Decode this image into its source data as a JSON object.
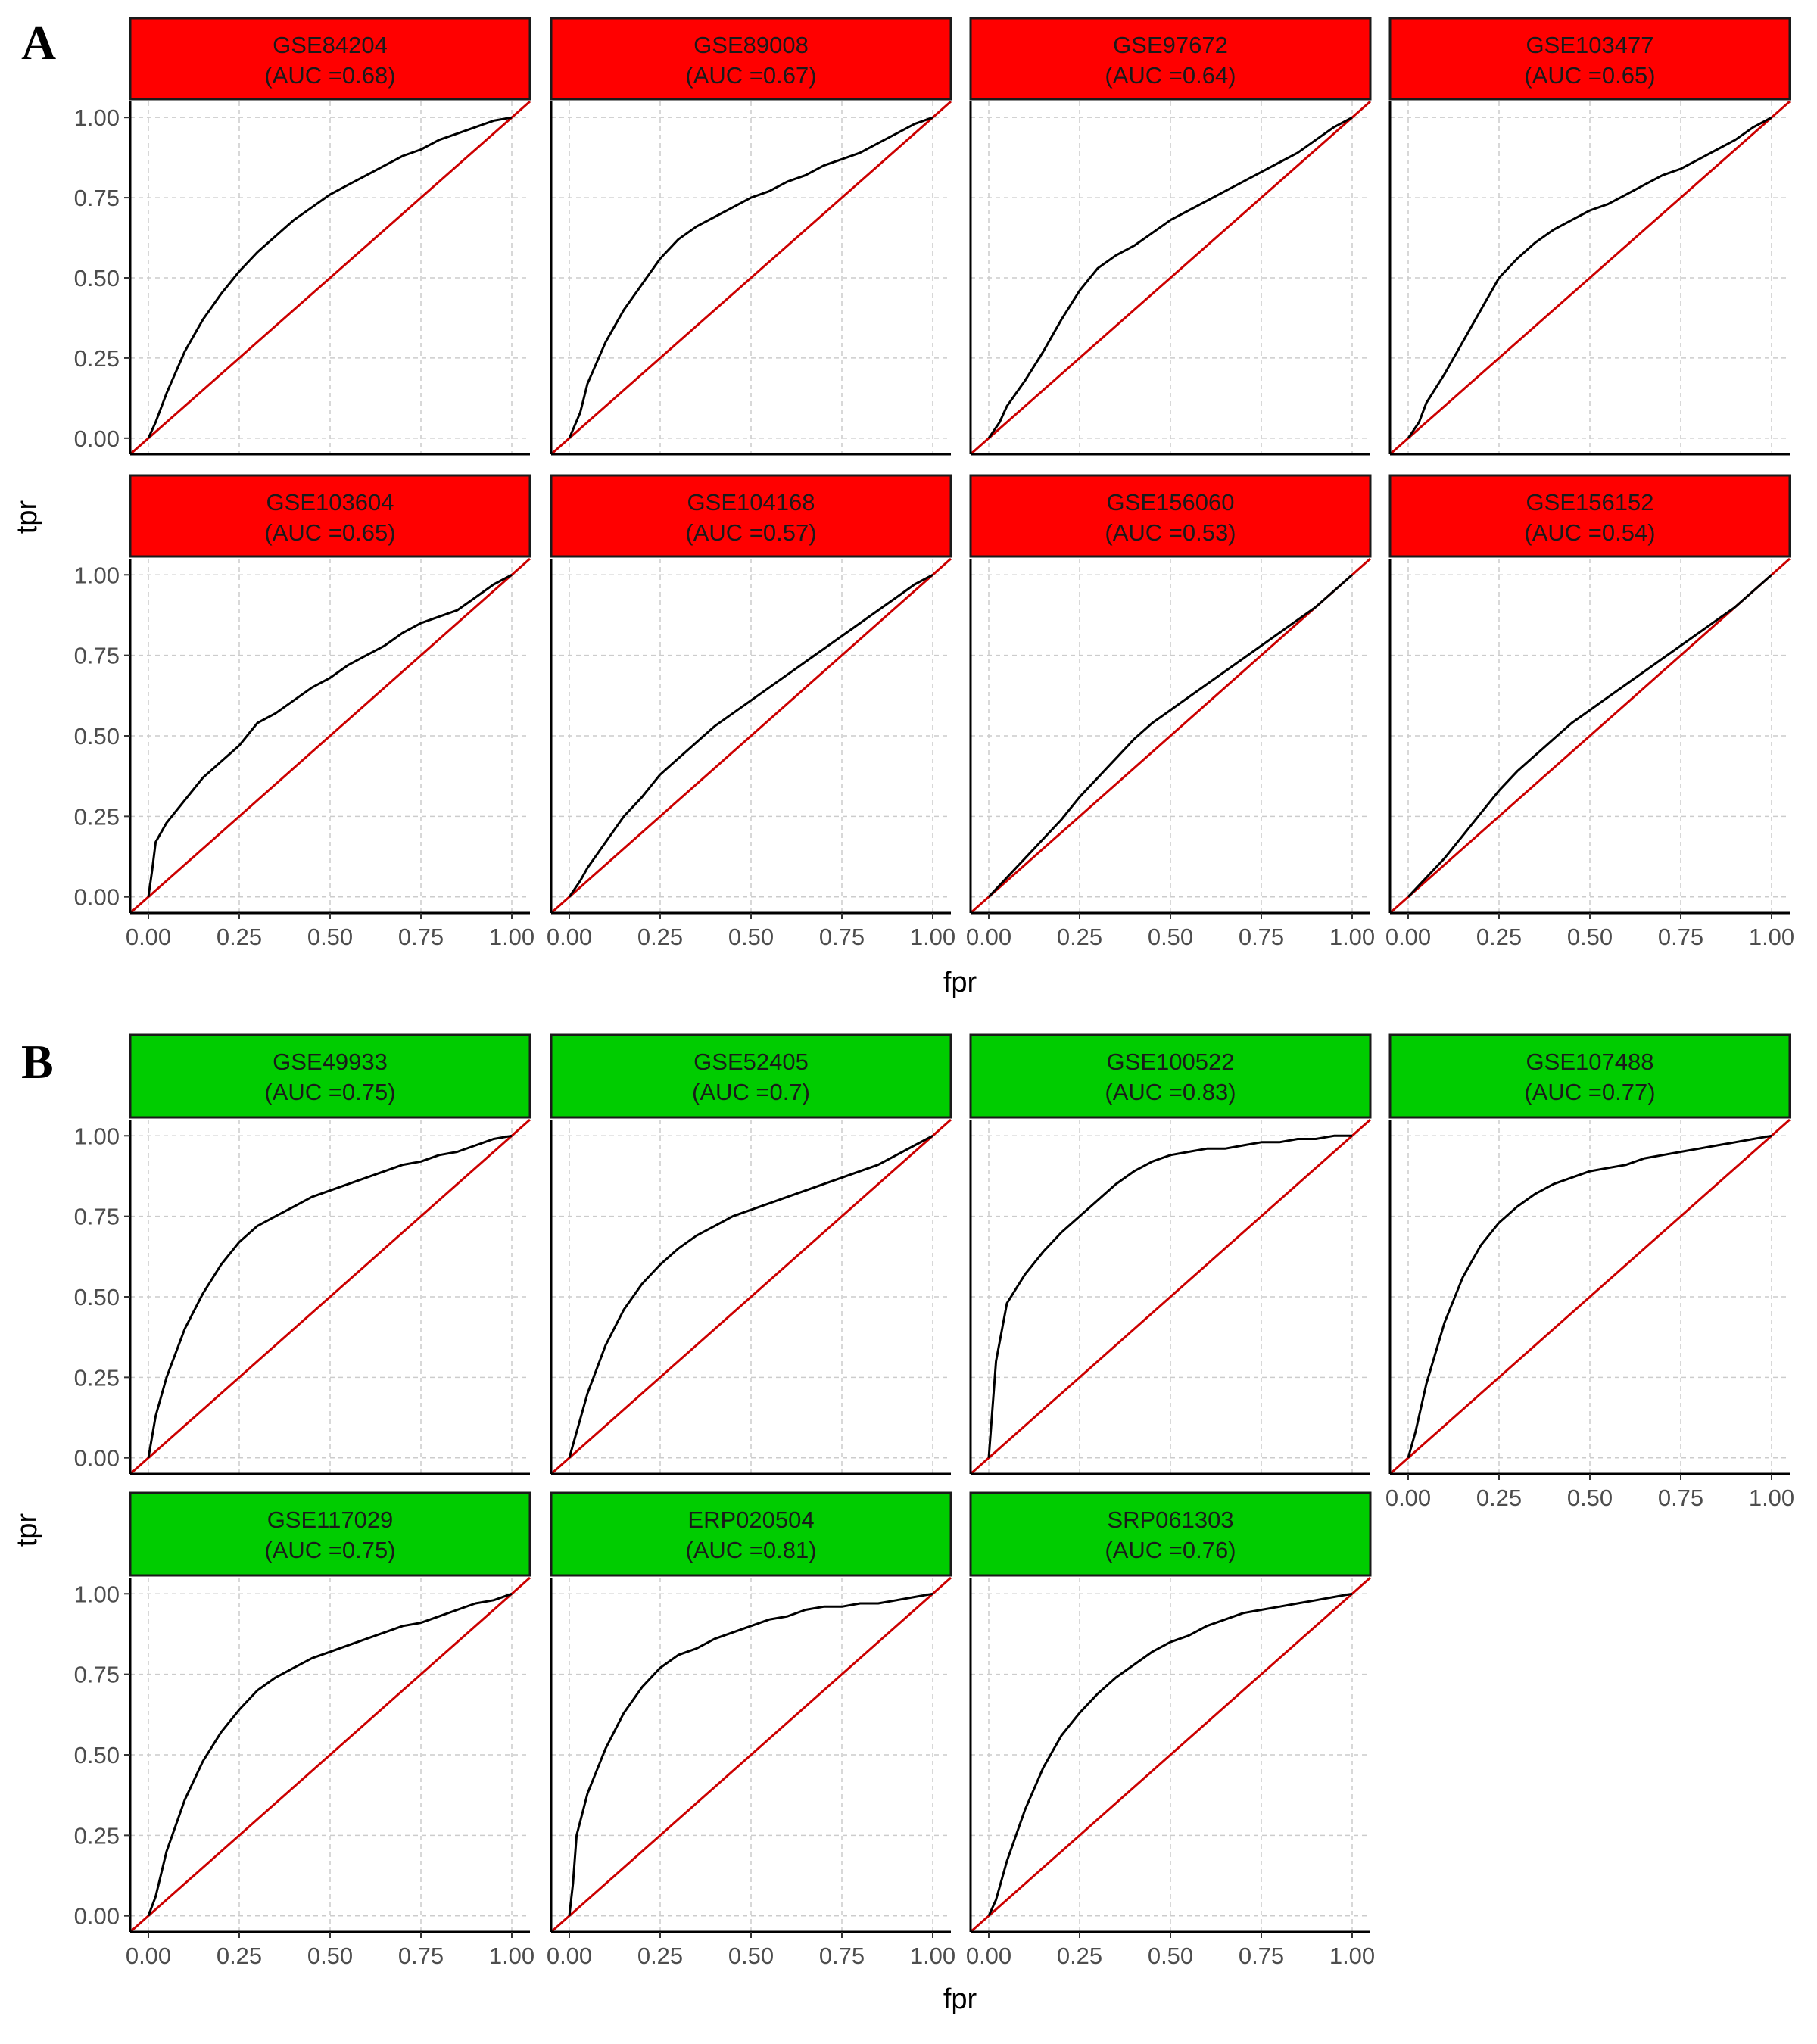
{
  "chart_data": [
    {
      "type": "line",
      "panel_label": "A",
      "xlabel": "fpr",
      "ylabel": "tpr",
      "xlim": [
        0,
        1
      ],
      "ylim": [
        0,
        1
      ],
      "x_ticks": [
        "0.00",
        "0.25",
        "0.50",
        "0.75",
        "1.00"
      ],
      "y_ticks": [
        "0.00",
        "0.25",
        "0.50",
        "0.75",
        "1.00"
      ],
      "grid": true,
      "strip_color": "#ff0000",
      "curve_color": "#000000",
      "diagonal_color": "#cc0000",
      "facets": [
        {
          "name": "GSE84204",
          "auc_label": "(AUC =0.68)",
          "fpr": [
            0,
            0.02,
            0.05,
            0.1,
            0.15,
            0.2,
            0.25,
            0.3,
            0.35,
            0.4,
            0.45,
            0.5,
            0.55,
            0.6,
            0.65,
            0.7,
            0.75,
            0.8,
            0.85,
            0.9,
            0.95,
            1
          ],
          "tpr": [
            0,
            0.05,
            0.14,
            0.27,
            0.37,
            0.45,
            0.52,
            0.58,
            0.63,
            0.68,
            0.72,
            0.76,
            0.79,
            0.82,
            0.85,
            0.88,
            0.9,
            0.93,
            0.95,
            0.97,
            0.99,
            1
          ]
        },
        {
          "name": "GSE89008",
          "auc_label": "(AUC =0.67)",
          "fpr": [
            0,
            0.03,
            0.05,
            0.1,
            0.15,
            0.2,
            0.25,
            0.3,
            0.35,
            0.4,
            0.45,
            0.5,
            0.55,
            0.6,
            0.65,
            0.7,
            0.75,
            0.8,
            0.85,
            0.9,
            0.95,
            1
          ],
          "tpr": [
            0,
            0.08,
            0.17,
            0.3,
            0.4,
            0.48,
            0.56,
            0.62,
            0.66,
            0.69,
            0.72,
            0.75,
            0.77,
            0.8,
            0.82,
            0.85,
            0.87,
            0.89,
            0.92,
            0.95,
            0.98,
            1
          ]
        },
        {
          "name": "GSE97672",
          "auc_label": "(AUC =0.64)",
          "fpr": [
            0,
            0.03,
            0.05,
            0.1,
            0.15,
            0.2,
            0.25,
            0.3,
            0.35,
            0.4,
            0.45,
            0.5,
            0.55,
            0.6,
            0.65,
            0.7,
            0.75,
            0.8,
            0.85,
            0.9,
            0.95,
            1
          ],
          "tpr": [
            0,
            0.05,
            0.1,
            0.18,
            0.27,
            0.37,
            0.46,
            0.53,
            0.57,
            0.6,
            0.64,
            0.68,
            0.71,
            0.74,
            0.77,
            0.8,
            0.83,
            0.86,
            0.89,
            0.93,
            0.97,
            1
          ]
        },
        {
          "name": "GSE103477",
          "auc_label": "(AUC =0.65)",
          "fpr": [
            0,
            0.03,
            0.05,
            0.1,
            0.15,
            0.2,
            0.25,
            0.3,
            0.35,
            0.4,
            0.45,
            0.5,
            0.55,
            0.6,
            0.65,
            0.7,
            0.75,
            0.8,
            0.85,
            0.9,
            0.95,
            1
          ],
          "tpr": [
            0,
            0.05,
            0.11,
            0.2,
            0.3,
            0.4,
            0.5,
            0.56,
            0.61,
            0.65,
            0.68,
            0.71,
            0.73,
            0.76,
            0.79,
            0.82,
            0.84,
            0.87,
            0.9,
            0.93,
            0.97,
            1
          ]
        },
        {
          "name": "GSE103604",
          "auc_label": "(AUC =0.65)",
          "fpr": [
            0,
            0.01,
            0.02,
            0.05,
            0.1,
            0.15,
            0.2,
            0.25,
            0.3,
            0.35,
            0.4,
            0.45,
            0.5,
            0.55,
            0.6,
            0.65,
            0.7,
            0.75,
            0.8,
            0.85,
            0.9,
            0.95,
            1
          ],
          "tpr": [
            0,
            0.08,
            0.17,
            0.23,
            0.3,
            0.37,
            0.42,
            0.47,
            0.54,
            0.57,
            0.61,
            0.65,
            0.68,
            0.72,
            0.75,
            0.78,
            0.82,
            0.85,
            0.87,
            0.89,
            0.93,
            0.97,
            1
          ]
        },
        {
          "name": "GSE104168",
          "auc_label": "(AUC =0.57)",
          "fpr": [
            0,
            0.03,
            0.05,
            0.1,
            0.15,
            0.2,
            0.25,
            0.3,
            0.35,
            0.4,
            0.45,
            0.5,
            0.55,
            0.6,
            0.65,
            0.7,
            0.75,
            0.8,
            0.85,
            0.9,
            0.95,
            1
          ],
          "tpr": [
            0,
            0.05,
            0.09,
            0.17,
            0.25,
            0.31,
            0.38,
            0.43,
            0.48,
            0.53,
            0.57,
            0.61,
            0.65,
            0.69,
            0.73,
            0.77,
            0.81,
            0.85,
            0.89,
            0.93,
            0.97,
            1
          ]
        },
        {
          "name": "GSE156060",
          "auc_label": "(AUC =0.53)",
          "fpr": [
            0,
            0.05,
            0.1,
            0.15,
            0.2,
            0.25,
            0.3,
            0.35,
            0.4,
            0.45,
            0.5,
            0.55,
            0.6,
            0.65,
            0.7,
            0.75,
            0.8,
            0.85,
            0.9,
            0.95,
            1
          ],
          "tpr": [
            0,
            0.06,
            0.12,
            0.18,
            0.24,
            0.31,
            0.37,
            0.43,
            0.49,
            0.54,
            0.58,
            0.62,
            0.66,
            0.7,
            0.74,
            0.78,
            0.82,
            0.86,
            0.9,
            0.95,
            1
          ]
        },
        {
          "name": "GSE156152",
          "auc_label": "(AUC =0.54)",
          "fpr": [
            0,
            0.05,
            0.1,
            0.15,
            0.2,
            0.25,
            0.3,
            0.35,
            0.4,
            0.45,
            0.5,
            0.55,
            0.6,
            0.65,
            0.7,
            0.75,
            0.8,
            0.85,
            0.9,
            0.95,
            1
          ],
          "tpr": [
            0,
            0.06,
            0.12,
            0.19,
            0.26,
            0.33,
            0.39,
            0.44,
            0.49,
            0.54,
            0.58,
            0.62,
            0.66,
            0.7,
            0.74,
            0.78,
            0.82,
            0.86,
            0.9,
            0.95,
            1
          ]
        }
      ]
    },
    {
      "type": "line",
      "panel_label": "B",
      "xlabel": "fpr",
      "ylabel": "tpr",
      "xlim": [
        0,
        1
      ],
      "ylim": [
        0,
        1
      ],
      "x_ticks": [
        "0.00",
        "0.25",
        "0.50",
        "0.75",
        "1.00"
      ],
      "y_ticks": [
        "0.00",
        "0.25",
        "0.50",
        "0.75",
        "1.00"
      ],
      "grid": true,
      "strip_color": "#00cc00",
      "curve_color": "#000000",
      "diagonal_color": "#cc0000",
      "facets": [
        {
          "name": "GSE49933",
          "auc_label": "(AUC =0.75)",
          "fpr": [
            0,
            0.02,
            0.05,
            0.1,
            0.15,
            0.2,
            0.25,
            0.3,
            0.35,
            0.4,
            0.45,
            0.5,
            0.55,
            0.6,
            0.65,
            0.7,
            0.75,
            0.8,
            0.85,
            0.9,
            0.95,
            1
          ],
          "tpr": [
            0,
            0.13,
            0.25,
            0.4,
            0.51,
            0.6,
            0.67,
            0.72,
            0.75,
            0.78,
            0.81,
            0.83,
            0.85,
            0.87,
            0.89,
            0.91,
            0.92,
            0.94,
            0.95,
            0.97,
            0.99,
            1
          ]
        },
        {
          "name": "GSE52405",
          "auc_label": "(AUC =0.7)",
          "fpr": [
            0,
            0.02,
            0.05,
            0.1,
            0.15,
            0.2,
            0.25,
            0.3,
            0.35,
            0.4,
            0.45,
            0.5,
            0.55,
            0.6,
            0.65,
            0.7,
            0.75,
            0.8,
            0.85,
            0.9,
            0.95,
            1
          ],
          "tpr": [
            0,
            0.08,
            0.2,
            0.35,
            0.46,
            0.54,
            0.6,
            0.65,
            0.69,
            0.72,
            0.75,
            0.77,
            0.79,
            0.81,
            0.83,
            0.85,
            0.87,
            0.89,
            0.91,
            0.94,
            0.97,
            1
          ]
        },
        {
          "name": "GSE100522",
          "auc_label": "(AUC =0.83)",
          "fpr": [
            0,
            0.01,
            0.02,
            0.05,
            0.1,
            0.15,
            0.2,
            0.25,
            0.3,
            0.35,
            0.4,
            0.45,
            0.5,
            0.55,
            0.6,
            0.65,
            0.7,
            0.75,
            0.8,
            0.85,
            0.9,
            0.95,
            1
          ],
          "tpr": [
            0,
            0.15,
            0.3,
            0.48,
            0.57,
            0.64,
            0.7,
            0.75,
            0.8,
            0.85,
            0.89,
            0.92,
            0.94,
            0.95,
            0.96,
            0.96,
            0.97,
            0.98,
            0.98,
            0.99,
            0.99,
            1,
            1
          ]
        },
        {
          "name": "GSE107488",
          "auc_label": "(AUC =0.77)",
          "fpr": [
            0,
            0.02,
            0.05,
            0.1,
            0.15,
            0.2,
            0.25,
            0.3,
            0.35,
            0.4,
            0.45,
            0.5,
            0.55,
            0.6,
            0.65,
            0.7,
            0.75,
            0.8,
            0.85,
            0.9,
            0.95,
            1
          ],
          "tpr": [
            0,
            0.08,
            0.23,
            0.42,
            0.56,
            0.66,
            0.73,
            0.78,
            0.82,
            0.85,
            0.87,
            0.89,
            0.9,
            0.91,
            0.93,
            0.94,
            0.95,
            0.96,
            0.97,
            0.98,
            0.99,
            1
          ]
        },
        {
          "name": "GSE117029",
          "auc_label": "(AUC =0.75)",
          "fpr": [
            0,
            0.02,
            0.05,
            0.1,
            0.15,
            0.2,
            0.25,
            0.3,
            0.35,
            0.4,
            0.45,
            0.5,
            0.55,
            0.6,
            0.65,
            0.7,
            0.75,
            0.8,
            0.85,
            0.9,
            0.95,
            1
          ],
          "tpr": [
            0,
            0.06,
            0.2,
            0.36,
            0.48,
            0.57,
            0.64,
            0.7,
            0.74,
            0.77,
            0.8,
            0.82,
            0.84,
            0.86,
            0.88,
            0.9,
            0.91,
            0.93,
            0.95,
            0.97,
            0.98,
            1
          ]
        },
        {
          "name": "ERP020504",
          "auc_label": "(AUC =0.81)",
          "fpr": [
            0,
            0.01,
            0.02,
            0.05,
            0.1,
            0.15,
            0.2,
            0.25,
            0.3,
            0.35,
            0.4,
            0.45,
            0.5,
            0.55,
            0.6,
            0.65,
            0.7,
            0.75,
            0.8,
            0.85,
            0.9,
            0.95,
            1
          ],
          "tpr": [
            0,
            0.1,
            0.25,
            0.38,
            0.52,
            0.63,
            0.71,
            0.77,
            0.81,
            0.83,
            0.86,
            0.88,
            0.9,
            0.92,
            0.93,
            0.95,
            0.96,
            0.96,
            0.97,
            0.97,
            0.98,
            0.99,
            1
          ]
        },
        {
          "name": "SRP061303",
          "auc_label": "(AUC =0.76)",
          "fpr": [
            0,
            0.02,
            0.05,
            0.1,
            0.15,
            0.2,
            0.25,
            0.3,
            0.35,
            0.4,
            0.45,
            0.5,
            0.55,
            0.6,
            0.65,
            0.7,
            0.75,
            0.8,
            0.85,
            0.9,
            0.95,
            1
          ],
          "tpr": [
            0,
            0.05,
            0.17,
            0.33,
            0.46,
            0.56,
            0.63,
            0.69,
            0.74,
            0.78,
            0.82,
            0.85,
            0.87,
            0.9,
            0.92,
            0.94,
            0.95,
            0.96,
            0.97,
            0.98,
            0.99,
            1
          ]
        }
      ]
    }
  ]
}
